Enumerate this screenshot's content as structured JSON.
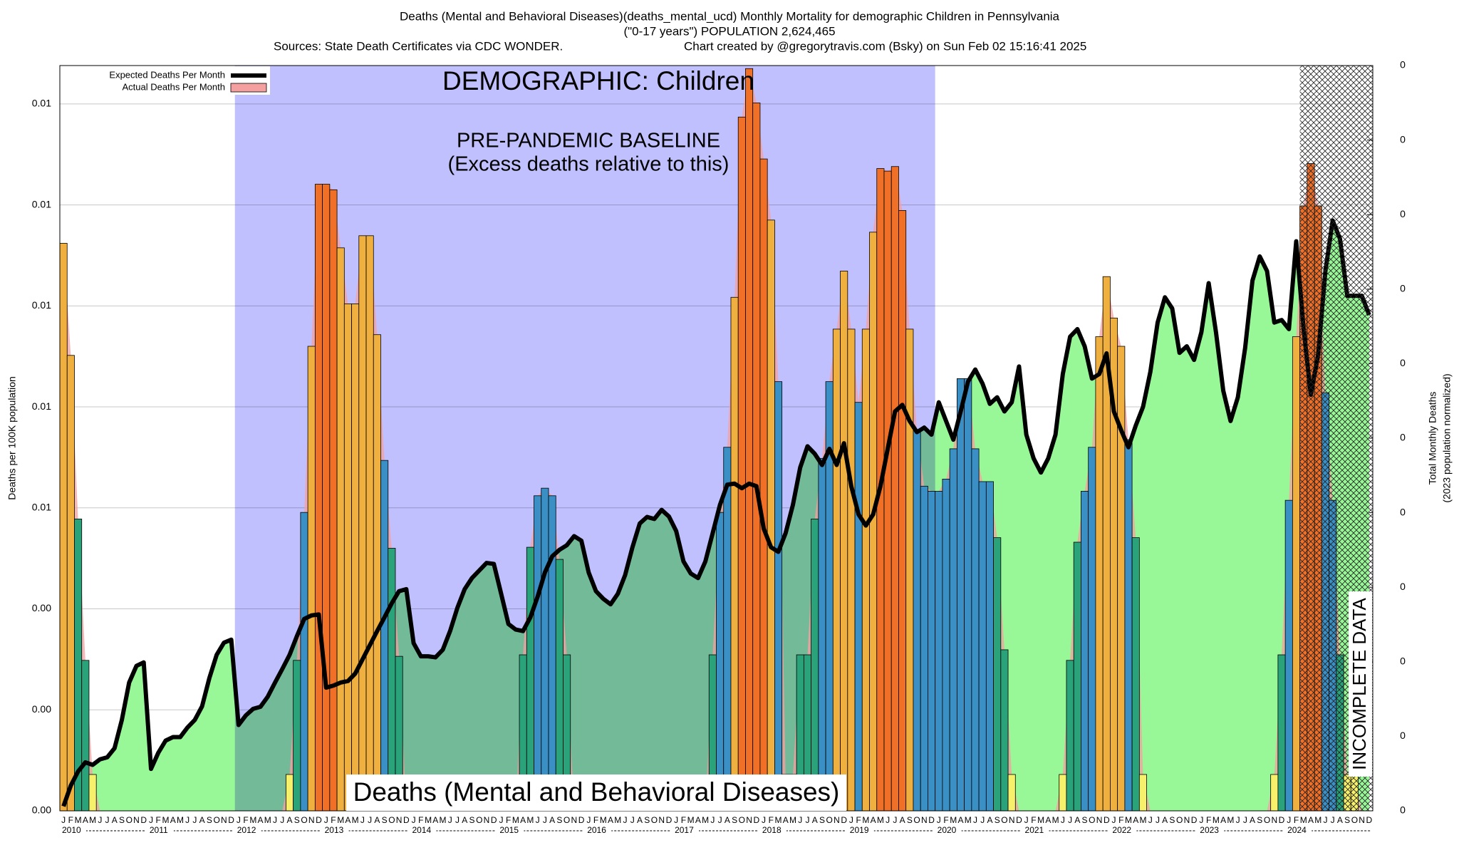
{
  "chart_data": {
    "type": "bar-line",
    "title": "Deaths (Mental and Behavioral Diseases)(deaths_mental_ucd) Monthly Mortality for demographic Children in Pennsylvania",
    "subtitle": "(\"0-17 years\") POPULATION 2,624,465",
    "source": "Sources: State Death Certificates via CDC WONDER.",
    "credit": "Chart created by @gregorytravis.com (Bsky) on Sun Feb 02 15:16:41 2025",
    "demographic_label": "DEMOGRAPHIC: Children",
    "baseline_label": "PRE-PANDEMIC BASELINE",
    "baseline_note": "(Excess deaths relative to this)",
    "cause_label": "Deaths (Mental and Behavioral Diseases)",
    "incomplete_label": "INCOMPLETE DATA",
    "ylabel": "Deaths per 100K population",
    "y2label": [
      "Total Monthly Deaths",
      "(2023 population normalized)"
    ],
    "legend": "top-left",
    "bar_palette": [
      "#f7f06a",
      "#2aa37a",
      "#3a8fc4",
      "#f0b040",
      "#f07028"
    ],
    "categories": [
      "J",
      "F",
      "M",
      "A",
      "M",
      "J",
      "J",
      "A",
      "S",
      "O",
      "N",
      "D",
      "J",
      "F",
      "M",
      "A",
      "M",
      "J",
      "J",
      "A",
      "S",
      "O",
      "N",
      "D",
      "J",
      "F",
      "M",
      "A",
      "M",
      "J",
      "J",
      "A",
      "S",
      "O",
      "N",
      "D",
      "J",
      "F",
      "M",
      "A",
      "M",
      "J",
      "J",
      "A",
      "S",
      "O",
      "N",
      "D",
      "J",
      "F",
      "M",
      "A",
      "M",
      "J",
      "J",
      "A",
      "S",
      "O",
      "N",
      "D",
      "J",
      "F",
      "M",
      "A",
      "M",
      "J",
      "J",
      "A",
      "S",
      "O",
      "N",
      "D",
      "J",
      "F",
      "M",
      "A",
      "M",
      "J",
      "J",
      "A",
      "S",
      "O",
      "N",
      "D",
      "J",
      "F",
      "M",
      "A",
      "M",
      "J",
      "J",
      "A",
      "S",
      "O",
      "N",
      "D",
      "J",
      "F",
      "M",
      "A",
      "M",
      "J",
      "J",
      "A",
      "S",
      "O",
      "N",
      "D",
      "J",
      "F",
      "M",
      "A",
      "M",
      "J",
      "J",
      "A",
      "S",
      "O",
      "N",
      "D",
      "J",
      "F",
      "M",
      "A",
      "M",
      "J",
      "J",
      "A",
      "S",
      "O",
      "N",
      "D",
      "J",
      "F",
      "M",
      "A",
      "M",
      "J",
      "J",
      "A",
      "S",
      "O",
      "N",
      "D",
      "J",
      "F",
      "M",
      "A",
      "M",
      "J",
      "J",
      "A",
      "S",
      "O",
      "N",
      "D",
      "J",
      "F",
      "M",
      "A",
      "M",
      "J",
      "J",
      "A",
      "S",
      "O",
      "N",
      "D",
      "J",
      "F",
      "M",
      "A",
      "M",
      "J",
      "J",
      "A",
      "S",
      "O",
      "N",
      "D"
    ],
    "years": [
      "2010",
      "2011",
      "2012",
      "2013",
      "2014",
      "2015",
      "2016",
      "2017",
      "2018",
      "2019",
      "2020",
      "2021",
      "2022",
      "2023",
      "2024"
    ],
    "series": [
      {
        "name": "Expected Deaths Per Month",
        "color": "#000000",
        "values": [
          9e-05,
          0.0005,
          0.00078,
          0.00096,
          0.00091,
          0.00102,
          0.00106,
          0.00124,
          0.0018,
          0.00254,
          0.00287,
          0.00294,
          0.00083,
          0.00115,
          0.00139,
          0.00146,
          0.00146,
          0.00165,
          0.0018,
          0.00207,
          0.00263,
          0.00309,
          0.00333,
          0.00339,
          0.0017,
          0.00189,
          0.00202,
          0.00206,
          0.00226,
          0.00254,
          0.00281,
          0.00309,
          0.00346,
          0.0038,
          0.00387,
          0.00389,
          0.00244,
          0.00248,
          0.00254,
          0.00257,
          0.00272,
          0.003,
          0.00328,
          0.00356,
          0.00383,
          0.00411,
          0.00435,
          0.00439,
          0.00332,
          0.00306,
          0.00306,
          0.00304,
          0.00319,
          0.00356,
          0.00402,
          0.00439,
          0.00461,
          0.00476,
          0.00491,
          0.00489,
          0.0043,
          0.0037,
          0.00359,
          0.00356,
          0.00383,
          0.00424,
          0.00472,
          0.00504,
          0.00517,
          0.00526,
          0.00544,
          0.00535,
          0.00472,
          0.00435,
          0.0042,
          0.00409,
          0.0043,
          0.00467,
          0.00522,
          0.00569,
          0.00582,
          0.00578,
          0.00596,
          0.00583,
          0.00554,
          0.00494,
          0.0047,
          0.00461,
          0.00494,
          0.0055,
          0.00606,
          0.00646,
          0.00648,
          0.00639,
          0.00648,
          0.00643,
          0.00559,
          0.00522,
          0.00513,
          0.0055,
          0.00606,
          0.0068,
          0.00722,
          0.00707,
          0.00685,
          0.00717,
          0.00685,
          0.00728,
          0.00643,
          0.00587,
          0.00565,
          0.00587,
          0.00643,
          0.00717,
          0.00791,
          0.00804,
          0.00772,
          0.0075,
          0.00759,
          0.00745,
          0.00809,
          0.00772,
          0.00735,
          0.00791,
          0.0085,
          0.00874,
          0.00846,
          0.00806,
          0.00819,
          0.00791,
          0.00809,
          0.0088,
          0.00745,
          0.00698,
          0.0067,
          0.00698,
          0.00745,
          0.00865,
          0.00939,
          0.00954,
          0.0092,
          0.00856,
          0.00865,
          0.00906,
          0.00791,
          0.00754,
          0.0072,
          0.00763,
          0.008,
          0.00869,
          0.00967,
          0.01017,
          0.00995,
          0.00907,
          0.0092,
          0.00893,
          0.00948,
          0.01045,
          0.00948,
          0.00832,
          0.00772,
          0.00819,
          0.00917,
          0.0105,
          0.01098,
          0.01069,
          0.00967,
          0.00972,
          0.00954,
          0.01128,
          0.00957,
          0.00824,
          0.00902,
          0.01069,
          0.01169,
          0.01133,
          0.0102,
          0.0102,
          0.0102,
          0.00982
        ]
      },
      {
        "name": "Actual Deaths Per Month",
        "color": "#f4a0a0",
        "values": [
          0.01124,
          0.00902,
          0.00578,
          0.00298,
          0.00072,
          0,
          0,
          0,
          0,
          0,
          0,
          0,
          0,
          0,
          0,
          0,
          0,
          0,
          0,
          0,
          0,
          0,
          0,
          0,
          0,
          0,
          0,
          0,
          0,
          0,
          0,
          0.00072,
          0.00298,
          0.00591,
          0.0092,
          0.01241,
          0.01241,
          0.0123,
          0.01115,
          0.01004,
          0.01004,
          0.01139,
          0.01139,
          0.00943,
          0.00694,
          0.0052,
          0.00306,
          0,
          0,
          0,
          0,
          0,
          0,
          0,
          0,
          0,
          0,
          0,
          0,
          0,
          0,
          0,
          0,
          0.00309,
          0.00522,
          0.00624,
          0.00639,
          0.00624,
          0.00498,
          0.00309,
          0,
          0,
          0,
          0,
          0,
          0,
          0,
          0,
          0,
          0,
          0,
          0,
          0,
          0,
          0,
          0,
          0,
          0,
          0,
          0.00309,
          0.00591,
          0.0072,
          0.01017,
          0.01374,
          0.0147,
          0.01402,
          0.01291,
          0.0117,
          0.0085,
          0.00072,
          0.00072,
          0.00309,
          0.00309,
          0.00578,
          0.00698,
          0.0085,
          0.00954,
          0.01069,
          0.00954,
          0.00809,
          0.00954,
          0.01146,
          0.01272,
          0.01267,
          0.01276,
          0.01189,
          0.00954,
          0.00754,
          0.00643,
          0.00633,
          0.00633,
          0.00657,
          0.00717,
          0.00856,
          0.00856,
          0.00717,
          0.00652,
          0.00652,
          0.00541,
          0.00319,
          0.00072,
          0,
          0,
          0,
          0,
          0,
          0,
          0.00072,
          0.00298,
          0.00532,
          0.00633,
          0.0072,
          0.00939,
          0.01058,
          0.00976,
          0.0092,
          0.00735,
          0.00541,
          0.00072,
          0,
          0,
          0,
          0,
          0,
          0,
          0,
          0,
          0,
          0,
          0,
          0,
          0,
          0,
          0,
          0,
          0,
          0.00072,
          0.00309,
          0.00615,
          0.00939,
          0.01198,
          0.01282,
          0.01198,
          0.00828,
          0.00615,
          0.00309,
          0.00072,
          0.00072,
          0,
          0
        ]
      }
    ],
    "ylim": [
      0,
      0.01476
    ],
    "yticks": [
      {
        "value": 0,
        "label": "0.00"
      },
      {
        "value": 0.002,
        "label": "0.00"
      },
      {
        "value": 0.004,
        "label": "0.00"
      },
      {
        "value": 0.006,
        "label": "0.01"
      },
      {
        "value": 0.008,
        "label": "0.01"
      },
      {
        "value": 0.01,
        "label": "0.01"
      },
      {
        "value": 0.012,
        "label": "0.01"
      },
      {
        "value": 0.014,
        "label": "0.01"
      }
    ],
    "y2lim": [
      0,
      0.39
    ],
    "y2ticks": [
      {
        "value": 0,
        "label": "0"
      },
      {
        "value": 0.039,
        "label": "0"
      },
      {
        "value": 0.078,
        "label": "0"
      },
      {
        "value": 0.117,
        "label": "0"
      },
      {
        "value": 0.156,
        "label": "0"
      },
      {
        "value": 0.195,
        "label": "0"
      },
      {
        "value": 0.234,
        "label": "0"
      },
      {
        "value": 0.273,
        "label": "0"
      },
      {
        "value": 0.312,
        "label": "0"
      },
      {
        "value": 0.351,
        "label": "0"
      },
      {
        "value": 0.39,
        "label": "0"
      }
    ],
    "grid": true
  }
}
